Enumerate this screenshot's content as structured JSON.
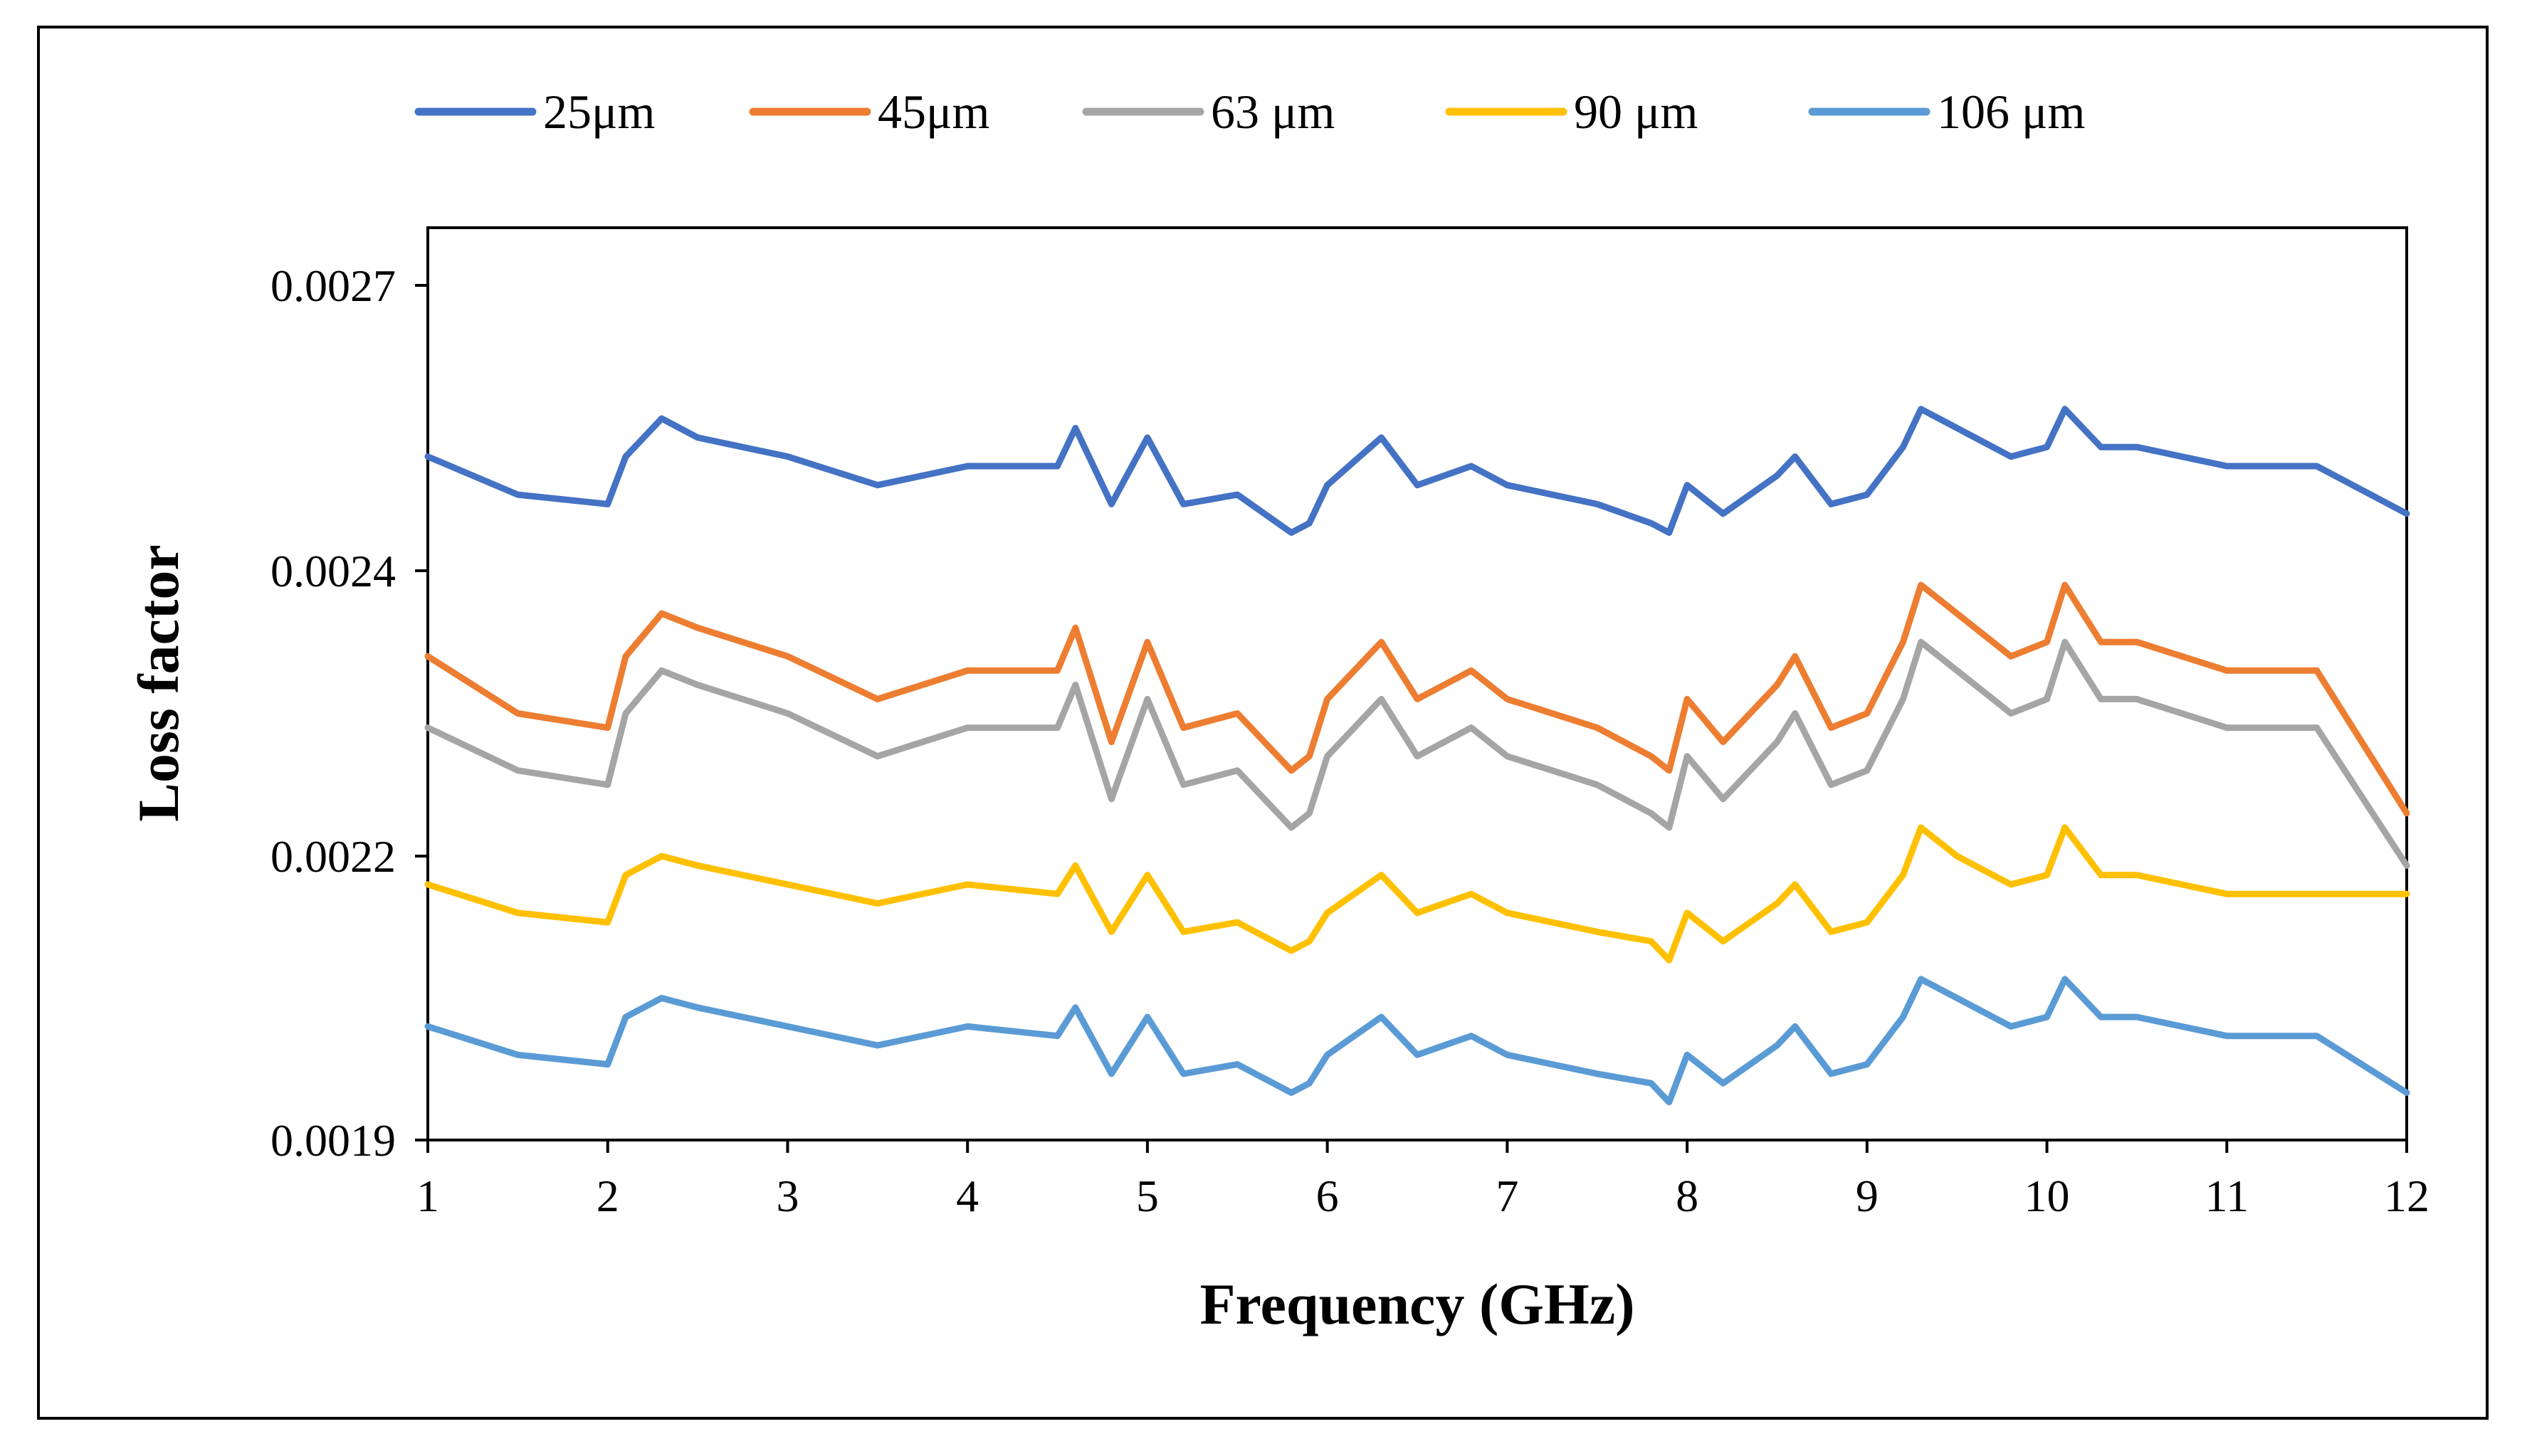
{
  "chart_data": {
    "type": "line",
    "xlabel": "Frequency (GHz)",
    "ylabel": "Loss factor",
    "xlim": [
      1,
      12
    ],
    "ylim": [
      0.0019,
      0.0028
    ],
    "x_ticks": [
      1,
      2,
      3,
      4,
      5,
      6,
      7,
      8,
      9,
      10,
      11,
      12
    ],
    "x_tick_labels": [
      "1",
      "2",
      "3",
      "4",
      "5",
      "6",
      "7",
      "8",
      "9",
      "10",
      "11",
      "12"
    ],
    "y_ticks": [
      0.0019,
      0.0022,
      0.0024,
      0.0027
    ],
    "y_tick_labels": [
      "0.0019",
      "0.0022",
      "0.0024",
      "0.0027"
    ],
    "grid": false,
    "legend_position": "top",
    "x": [
      1,
      1.5,
      2,
      2.1,
      2.3,
      2.5,
      3,
      3.5,
      4,
      4.5,
      4.6,
      4.8,
      5,
      5.2,
      5.5,
      5.8,
      5.9,
      6,
      6.3,
      6.5,
      6.8,
      7,
      7.5,
      7.8,
      7.9,
      8,
      8.2,
      8.5,
      8.6,
      8.8,
      9,
      9.2,
      9.3,
      9.5,
      9.8,
      10,
      10.1,
      10.3,
      10.5,
      11,
      11.5,
      12
    ],
    "series": [
      {
        "name": "25μm",
        "color": "#4472C4",
        "values": [
          0.00252,
          0.00248,
          0.00247,
          0.00252,
          0.00256,
          0.00254,
          0.00252,
          0.00249,
          0.00251,
          0.00251,
          0.00255,
          0.00247,
          0.00254,
          0.00247,
          0.00248,
          0.00244,
          0.00245,
          0.00249,
          0.00254,
          0.00249,
          0.00251,
          0.00249,
          0.00247,
          0.00245,
          0.00244,
          0.00249,
          0.00246,
          0.0025,
          0.00252,
          0.00247,
          0.00248,
          0.00253,
          0.00257,
          0.00255,
          0.00252,
          0.00253,
          0.00257,
          0.00253,
          0.00253,
          0.00251,
          0.00251,
          0.00246
        ]
      },
      {
        "name": "45μm",
        "color": "#ED7D31",
        "values": [
          0.00234,
          0.0023,
          0.00229,
          0.00234,
          0.00237,
          0.00236,
          0.00234,
          0.00231,
          0.00233,
          0.00233,
          0.00236,
          0.00228,
          0.00235,
          0.00229,
          0.0023,
          0.00226,
          0.00227,
          0.00231,
          0.00235,
          0.00231,
          0.00233,
          0.00231,
          0.00229,
          0.00227,
          0.00226,
          0.00231,
          0.00228,
          0.00232,
          0.00234,
          0.00229,
          0.0023,
          0.00235,
          0.00239,
          0.00237,
          0.00234,
          0.00235,
          0.00239,
          0.00235,
          0.00235,
          0.00233,
          0.00233,
          0.00223
        ]
      },
      {
        "name": "63 μm",
        "color": "#A5A5A5",
        "values": [
          0.00229,
          0.00226,
          0.00225,
          0.0023,
          0.00233,
          0.00232,
          0.0023,
          0.00227,
          0.00229,
          0.00229,
          0.00232,
          0.00224,
          0.00231,
          0.00225,
          0.00226,
          0.00222,
          0.00223,
          0.00227,
          0.00231,
          0.00227,
          0.00229,
          0.00227,
          0.00225,
          0.00223,
          0.00222,
          0.00227,
          0.00224,
          0.00228,
          0.0023,
          0.00225,
          0.00226,
          0.00231,
          0.00235,
          0.00233,
          0.0023,
          0.00231,
          0.00235,
          0.00231,
          0.00231,
          0.00229,
          0.00229,
          0.00219
        ]
      },
      {
        "name": "90 μm",
        "color": "#FFC000",
        "values": [
          0.00217,
          0.00214,
          0.00213,
          0.00218,
          0.0022,
          0.00219,
          0.00217,
          0.00215,
          0.00217,
          0.00216,
          0.00219,
          0.00212,
          0.00218,
          0.00212,
          0.00213,
          0.0021,
          0.00211,
          0.00214,
          0.00218,
          0.00214,
          0.00216,
          0.00214,
          0.00212,
          0.00211,
          0.00209,
          0.00214,
          0.00211,
          0.00215,
          0.00217,
          0.00212,
          0.00213,
          0.00218,
          0.00222,
          0.0022,
          0.00217,
          0.00218,
          0.00222,
          0.00218,
          0.00218,
          0.00216,
          0.00216,
          0.00216
        ]
      },
      {
        "name": "106 μm",
        "color": "#5B9BD5",
        "values": [
          0.00202,
          0.00199,
          0.00198,
          0.00203,
          0.00205,
          0.00204,
          0.00202,
          0.002,
          0.00202,
          0.00201,
          0.00204,
          0.00197,
          0.00203,
          0.00197,
          0.00198,
          0.00195,
          0.00196,
          0.00199,
          0.00203,
          0.00199,
          0.00201,
          0.00199,
          0.00197,
          0.00196,
          0.00194,
          0.00199,
          0.00196,
          0.002,
          0.00202,
          0.00197,
          0.00198,
          0.00203,
          0.00207,
          0.00205,
          0.00202,
          0.00203,
          0.00207,
          0.00203,
          0.00203,
          0.00201,
          0.00201,
          0.00195
        ]
      }
    ]
  }
}
